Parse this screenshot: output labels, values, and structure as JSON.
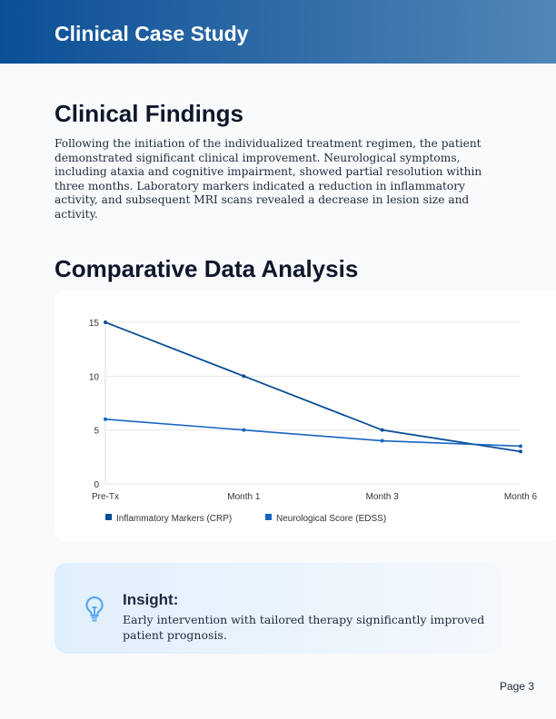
{
  "header": {
    "title": "Clinical Case Study"
  },
  "findings": {
    "heading": "Clinical Findings",
    "body": "Following the initiation of the individualized treatment regimen, the patient demonstrated significant clinical improvement. Neurological symptoms, including ataxia and cognitive impairment, showed partial resolution within three months. Laboratory markers indicated a reduction in inflammatory activity, and subsequent MRI scans revealed a decrease in lesion size and activity."
  },
  "analysis": {
    "heading": "Comparative Data Analysis"
  },
  "chart_data": {
    "type": "line",
    "categories": [
      "Pre-Tx",
      "Month 1",
      "Month 3",
      "Month 6"
    ],
    "series": [
      {
        "name": "Inflammatory Markers (CRP)",
        "values": [
          15,
          10,
          5,
          3
        ],
        "color": "#0b4f96"
      },
      {
        "name": "Neurological Score (EDSS)",
        "values": [
          6,
          5,
          4,
          3.5
        ],
        "color": "#1565c0"
      }
    ],
    "yticks": [
      0,
      5,
      10,
      15
    ],
    "ylim": [
      0,
      15
    ],
    "grid": true,
    "legend": "bottom-left"
  },
  "insight": {
    "icon": "lightbulb-icon",
    "title": "Insight:",
    "text": "Early intervention with tailored therapy significantly improved patient prognosis."
  },
  "footer": {
    "page": "Page 3"
  }
}
